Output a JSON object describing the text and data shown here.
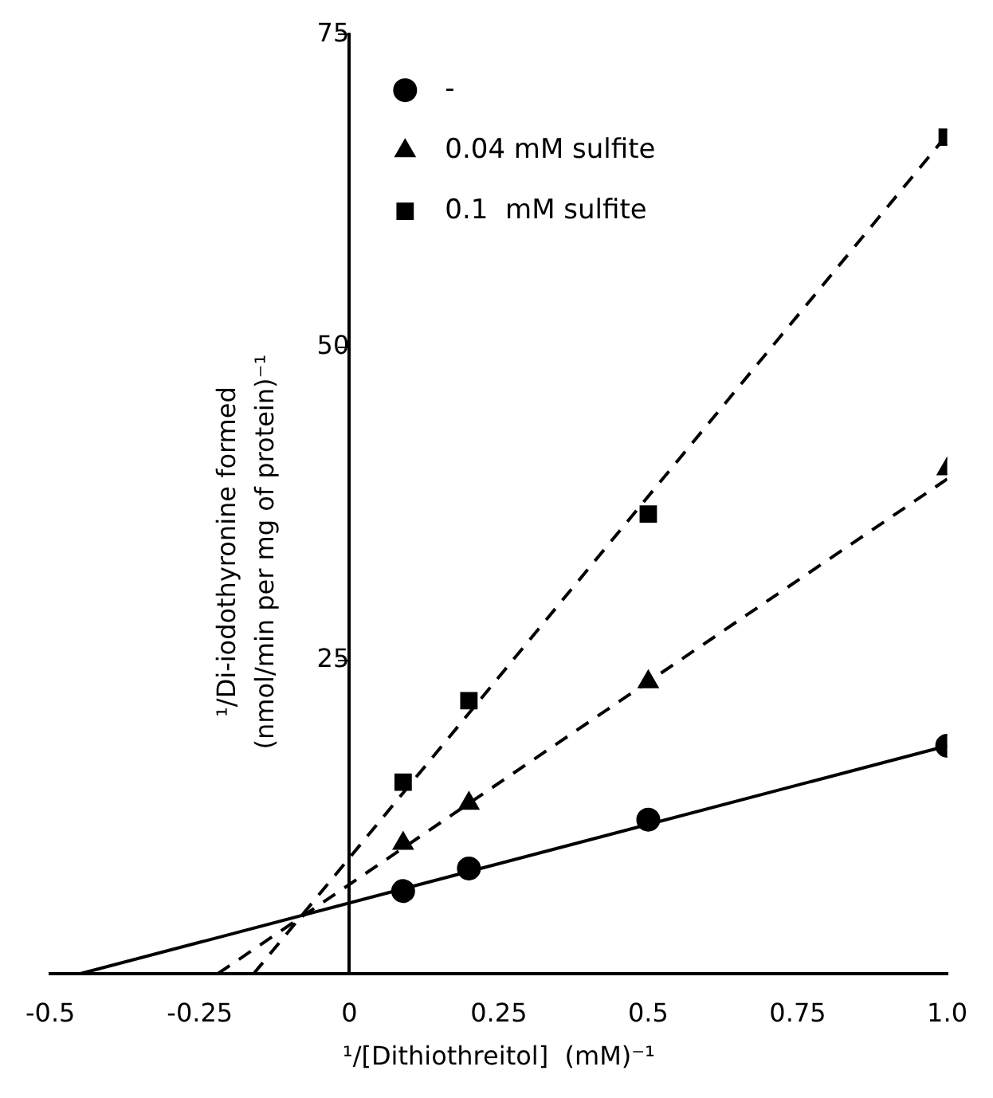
{
  "chart_data": {
    "type": "scatter",
    "xlabel": "¹/[Dithiothreitol]  (mM)⁻¹",
    "ylabel": "¹/Di-iodothyronine formed\n(nmol/min per mg of protein)⁻¹",
    "xlim": [
      -0.5,
      1.0
    ],
    "xticks": [
      -0.5,
      -0.25,
      0,
      0.25,
      0.5,
      0.75,
      {
        "value": 1,
        "label": "1.0"
      }
    ],
    "ylim": [
      0,
      75
    ],
    "yticks": [
      25,
      50,
      75
    ],
    "grid": false,
    "legend": "top left",
    "series": [
      {
        "name": "-",
        "type": "scatter",
        "marker": "circle",
        "color": "#000000",
        "x": [
          0.09,
          0.2,
          0.5,
          1.0
        ],
        "values": [
          6.6,
          8.4,
          12.3,
          18.2
        ]
      },
      {
        "name": "0.04 mM sulfite",
        "type": "scatter",
        "marker": "triangle",
        "color": "#000000",
        "x": [
          0.09,
          0.2,
          0.5,
          1.0
        ],
        "values": [
          10.4,
          13.6,
          23.3,
          40.3
        ]
      },
      {
        "name": "0.1  mM sulfite",
        "type": "scatter",
        "marker": "square",
        "color": "#000000",
        "x": [
          0.09,
          0.2,
          0.5,
          1.0
        ],
        "values": [
          15.3,
          21.8,
          36.7,
          66.8
        ]
      },
      {
        "type": "line",
        "line_style": "solid",
        "marker": "none",
        "color": "#000000",
        "x": [
          -0.45,
          1.0
        ],
        "values": [
          0,
          18.2
        ]
      },
      {
        "type": "line",
        "line_style": "dashed",
        "marker": "none",
        "color": "#000000",
        "x": [
          -0.22,
          1.0
        ],
        "values": [
          0,
          39.5
        ]
      },
      {
        "type": "line",
        "line_style": "dashed",
        "marker": "none",
        "color": "#000000",
        "x": [
          -0.16,
          1.0
        ],
        "values": [
          0,
          67
        ]
      }
    ]
  }
}
